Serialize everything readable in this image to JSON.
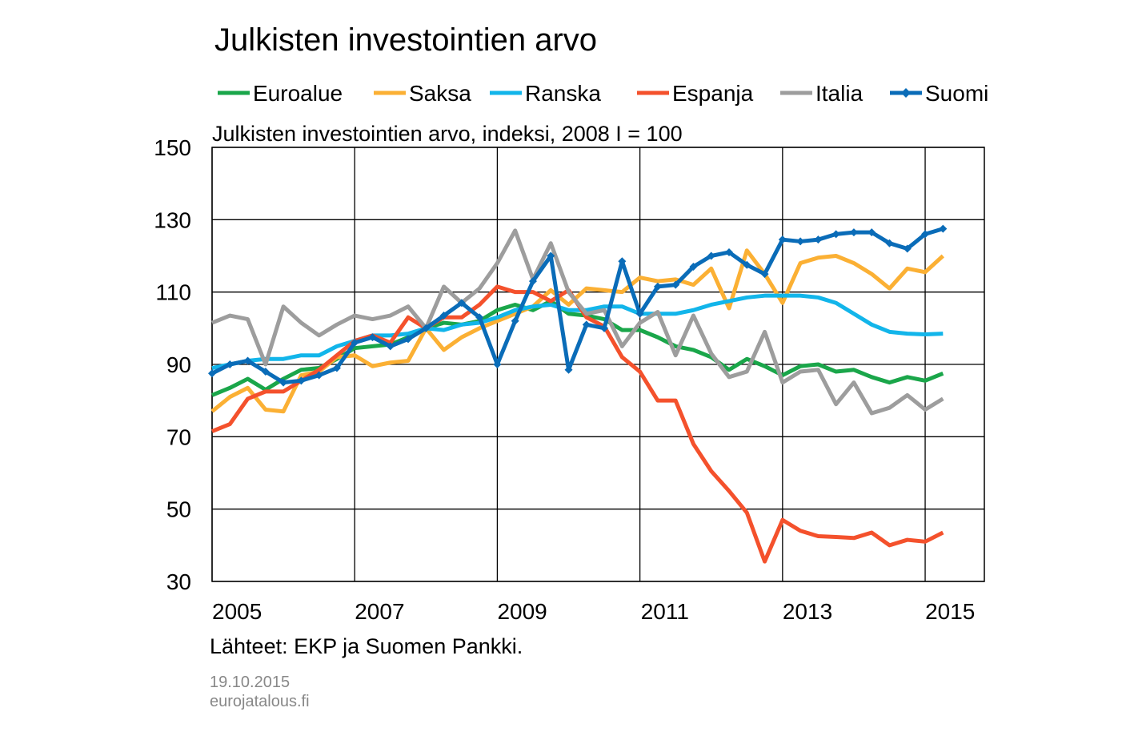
{
  "chart_data": {
    "type": "line",
    "title": "Julkisten investointien arvo",
    "subtitle": "Julkisten investointien arvo, indeksi, 2008 I = 100",
    "source": "Lähteet: EKP ja Suomen Pankki.",
    "date": "19.10.2015",
    "website": "eurojatalous.fi",
    "x": [
      2005,
      2005.25,
      2005.5,
      2005.75,
      2006,
      2006.25,
      2006.5,
      2006.75,
      2007,
      2007.25,
      2007.5,
      2007.75,
      2008,
      2008.25,
      2008.5,
      2008.75,
      2009,
      2009.25,
      2009.5,
      2009.75,
      2010,
      2010.25,
      2010.5,
      2010.75,
      2011,
      2011.25,
      2011.5,
      2011.75,
      2012,
      2012.25,
      2012.5,
      2012.75,
      2013,
      2013.25,
      2013.5,
      2013.75,
      2014,
      2014.25,
      2014.5,
      2014.75,
      2015,
      2015.25
    ],
    "xlim": [
      2005,
      2015.83
    ],
    "xticks": [
      2005,
      2007,
      2009,
      2011,
      2013,
      2015
    ],
    "ylim": [
      30,
      150
    ],
    "yticks": [
      30,
      50,
      70,
      90,
      110,
      130,
      150
    ],
    "grid": true,
    "series": [
      {
        "name": "Euroalue",
        "color": "#1aa64a",
        "values": [
          81.5,
          83.5,
          86,
          83,
          86,
          88.5,
          89,
          91.5,
          94.5,
          95,
          95.5,
          97.5,
          100,
          101.5,
          101,
          102,
          105,
          106.5,
          105,
          107.5,
          104,
          103.5,
          102.5,
          99.5,
          99.5,
          97.5,
          95,
          94,
          92,
          88.5,
          91.5,
          89.5,
          87,
          89.5,
          90,
          88,
          88.5,
          86.5,
          85,
          86.5,
          85.5,
          87.5
        ]
      },
      {
        "name": "Saksa",
        "color": "#fbb034",
        "values": [
          77,
          81,
          83.5,
          77.5,
          77,
          87,
          88,
          92,
          92.5,
          89.5,
          90.5,
          91,
          100,
          94,
          97.5,
          100,
          102,
          104,
          106,
          110.5,
          106.5,
          111,
          110.5,
          110,
          114,
          113,
          113.5,
          112,
          116.5,
          105.5,
          121.5,
          115,
          107,
          118,
          119.5,
          120,
          118,
          115,
          111,
          116.5,
          115.5,
          120
        ]
      },
      {
        "name": "Ranska",
        "color": "#12b5ea",
        "values": [
          89,
          90,
          91,
          91.5,
          91.5,
          92.5,
          92.5,
          95,
          96.5,
          98,
          98,
          98.5,
          100,
          99.5,
          101,
          101.5,
          103,
          105,
          106,
          106.5,
          105,
          105,
          106,
          106,
          104,
          104,
          104,
          105,
          106.5,
          107.5,
          108.5,
          109,
          109,
          109,
          108.5,
          107,
          104,
          101,
          99,
          98.5,
          98.3,
          98.5
        ]
      },
      {
        "name": "Espanja",
        "color": "#f4512c",
        "values": [
          71.5,
          73.5,
          80.5,
          82.5,
          82.5,
          85.5,
          88.5,
          92.5,
          96.5,
          98,
          96,
          103,
          100,
          103,
          103,
          106.5,
          111.5,
          110,
          110,
          107.5,
          110.5,
          103,
          100.5,
          92,
          88,
          80,
          80,
          68,
          60.5,
          55,
          49,
          35.5,
          47,
          44,
          42.5,
          42.3,
          42,
          43.5,
          40,
          41.5,
          41,
          43.5
        ]
      },
      {
        "name": "Italia",
        "color": "#9d9d9d",
        "values": [
          101.5,
          103.5,
          102.5,
          90,
          106,
          101.5,
          98,
          101,
          103.5,
          102.5,
          103.5,
          106,
          100,
          111.5,
          107,
          111,
          118,
          127,
          113.5,
          123.5,
          110,
          104,
          105,
          95,
          101.5,
          104.5,
          92.5,
          103.5,
          93,
          86.5,
          88,
          99,
          85,
          88,
          88.5,
          79,
          85,
          76.5,
          78,
          81.5,
          77.5,
          80.5
        ]
      },
      {
        "name": "Suomi",
        "color": "#0a6cb8",
        "marker": "diamond",
        "values": [
          87.5,
          90,
          91,
          88,
          85,
          85.5,
          87,
          89,
          96,
          97.5,
          95,
          97,
          100,
          103.5,
          107,
          103,
          90,
          102,
          113,
          120,
          88.5,
          101,
          100,
          118.5,
          104,
          111.5,
          112,
          117,
          120,
          121,
          117.5,
          115,
          124.5,
          124,
          124.5,
          126,
          126.5,
          126.5,
          123.5,
          122,
          126,
          127.5
        ]
      }
    ]
  }
}
